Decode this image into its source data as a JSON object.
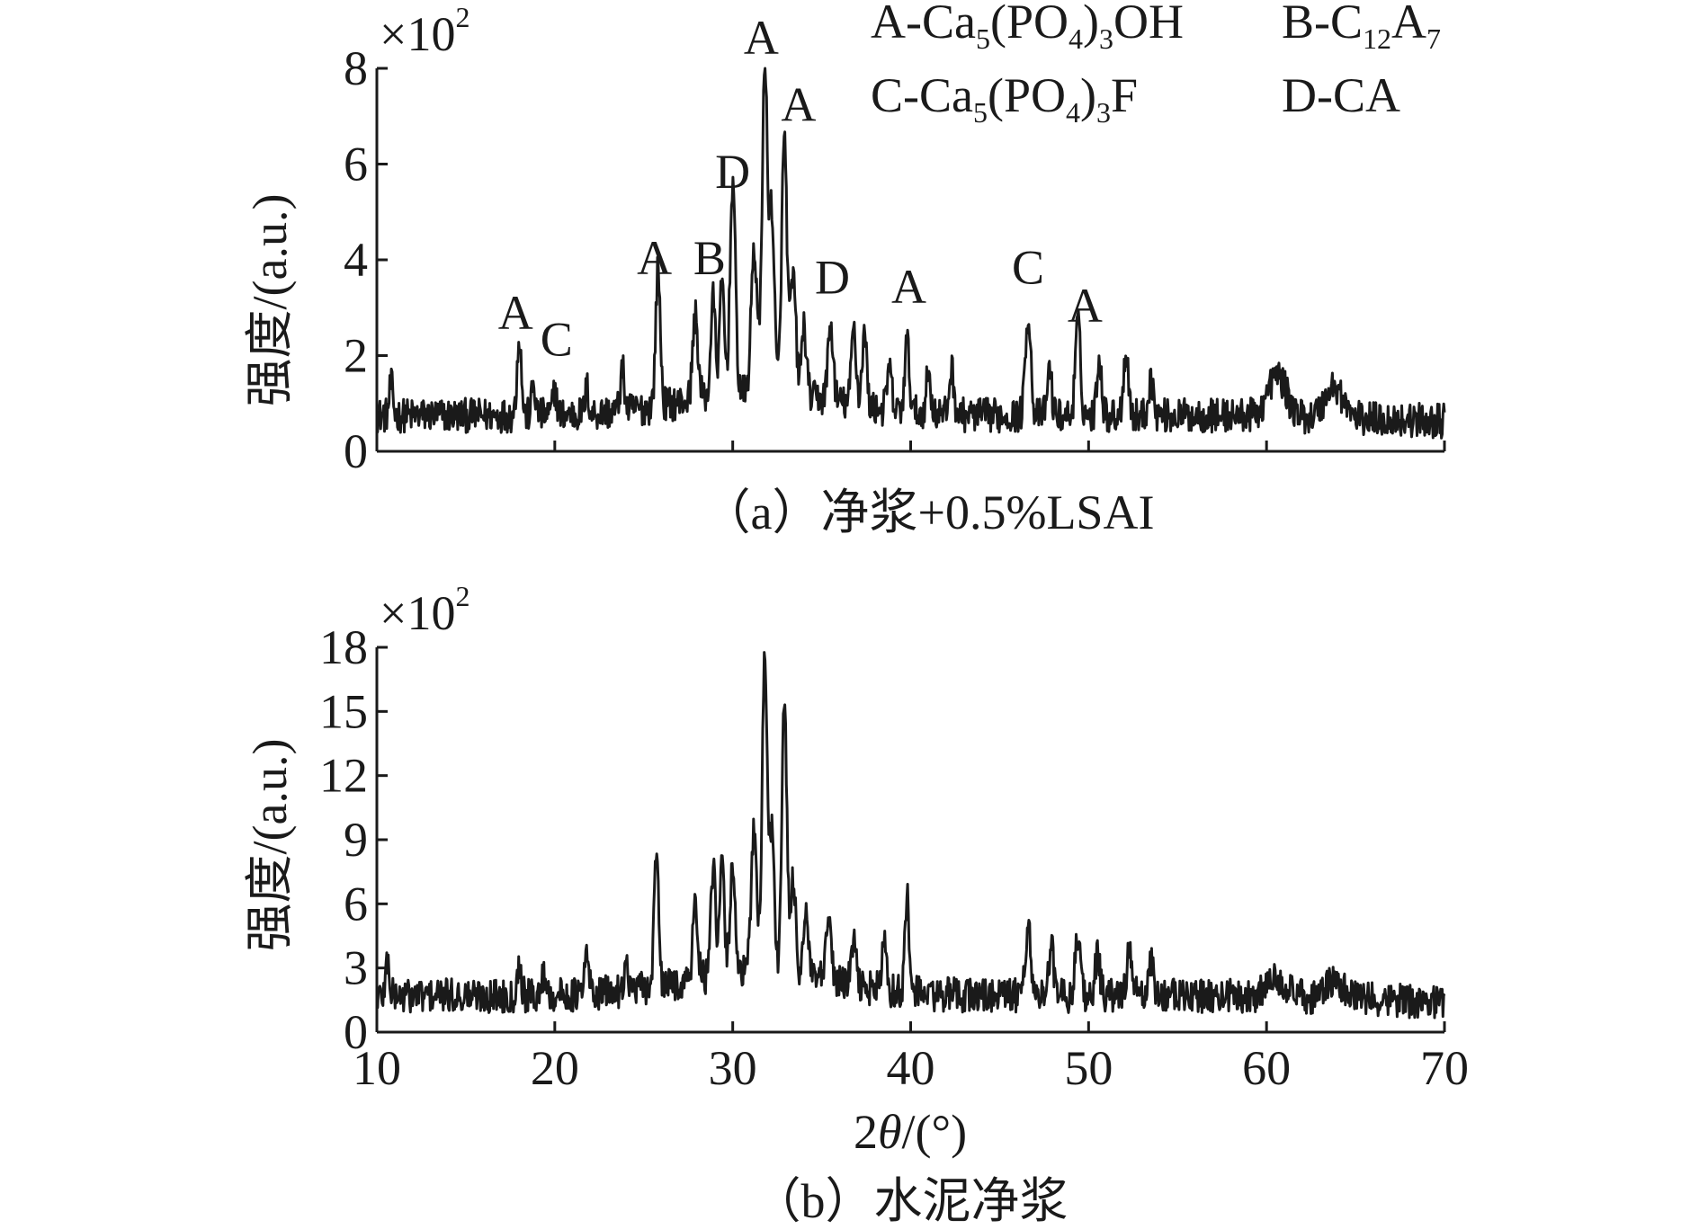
{
  "chart_data": [
    {
      "type": "line",
      "panel": "a",
      "caption": "（a）净浆+0.5%LSAI",
      "ylabel": "强度/(a.u.)",
      "y_multiplier": "×10²",
      "xlim": [
        10,
        70
      ],
      "ylim": [
        0,
        8
      ],
      "yticks": [
        0,
        2,
        4,
        6,
        8
      ],
      "xticks": [
        10,
        20,
        30,
        40,
        50,
        60,
        70
      ],
      "xtick_labels_shown": false,
      "legend": {
        "placement": "top-right",
        "entries": [
          {
            "prefix": "A-Ca",
            "text": "A-Ca5(PO4)3OH"
          },
          {
            "prefix": "B-C",
            "text": "B-C12A7"
          },
          {
            "prefix": "C-Ca",
            "text": "C-Ca5(PO4)3F"
          },
          {
            "prefix": "D-CA",
            "text": "D-CA"
          }
        ]
      },
      "baseline": 0.75,
      "series": [
        {
          "peaks": [
            {
              "x": 10.8,
              "y": 1.4,
              "w": 0.1
            },
            {
              "x": 18.0,
              "y": 2.4,
              "w": 0.12
            },
            {
              "x": 18.8,
              "y": 1.4,
              "w": 0.1
            },
            {
              "x": 20.0,
              "y": 1.3,
              "w": 0.1
            },
            {
              "x": 21.8,
              "y": 1.3,
              "w": 0.1
            },
            {
              "x": 23.8,
              "y": 1.6,
              "w": 0.12
            },
            {
              "x": 25.8,
              "y": 3.6,
              "w": 0.13
            },
            {
              "x": 27.9,
              "y": 2.5,
              "w": 0.15
            },
            {
              "x": 28.9,
              "y": 2.8,
              "w": 0.13
            },
            {
              "x": 29.4,
              "y": 3.1,
              "w": 0.13
            },
            {
              "x": 30.0,
              "y": 5.2,
              "w": 0.15
            },
            {
              "x": 31.2,
              "y": 3.8,
              "w": 0.16
            },
            {
              "x": 31.8,
              "y": 7.6,
              "w": 0.15
            },
            {
              "x": 32.2,
              "y": 4.5,
              "w": 0.14
            },
            {
              "x": 32.9,
              "y": 6.1,
              "w": 0.15
            },
            {
              "x": 33.4,
              "y": 3.2,
              "w": 0.15
            },
            {
              "x": 34.0,
              "y": 2.2,
              "w": 0.14
            },
            {
              "x": 35.5,
              "y": 2.3,
              "w": 0.15
            },
            {
              "x": 36.8,
              "y": 2.4,
              "w": 0.13
            },
            {
              "x": 37.4,
              "y": 2.3,
              "w": 0.13
            },
            {
              "x": 38.8,
              "y": 1.6,
              "w": 0.13
            },
            {
              "x": 39.8,
              "y": 2.2,
              "w": 0.13
            },
            {
              "x": 41.0,
              "y": 1.6,
              "w": 0.13
            },
            {
              "x": 42.3,
              "y": 1.7,
              "w": 0.13
            },
            {
              "x": 46.6,
              "y": 2.9,
              "w": 0.15
            },
            {
              "x": 47.8,
              "y": 1.7,
              "w": 0.13
            },
            {
              "x": 49.4,
              "y": 2.7,
              "w": 0.14
            },
            {
              "x": 50.6,
              "y": 2.0,
              "w": 0.13
            },
            {
              "x": 52.1,
              "y": 2.1,
              "w": 0.14
            },
            {
              "x": 53.5,
              "y": 1.5,
              "w": 0.14
            },
            {
              "x": 60.6,
              "y": 1.6,
              "w": 0.5
            },
            {
              "x": 63.8,
              "y": 1.4,
              "w": 0.5
            }
          ]
        }
      ],
      "annotations": [
        {
          "label": "A",
          "x": 17.8,
          "y": 2.55
        },
        {
          "label": "C",
          "x": 20.1,
          "y": 2.0
        },
        {
          "label": "A",
          "x": 25.6,
          "y": 3.7
        },
        {
          "label": "B",
          "x": 28.7,
          "y": 3.7
        },
        {
          "label": "D",
          "x": 30.0,
          "y": 5.5
        },
        {
          "label": "A",
          "x": 31.6,
          "y": 8.3
        },
        {
          "label": "A",
          "x": 33.7,
          "y": 6.9
        },
        {
          "label": "D",
          "x": 35.6,
          "y": 3.3
        },
        {
          "label": "A",
          "x": 39.9,
          "y": 3.1
        },
        {
          "label": "C",
          "x": 46.6,
          "y": 3.5
        },
        {
          "label": "A",
          "x": 49.8,
          "y": 2.7
        }
      ]
    },
    {
      "type": "line",
      "panel": "b",
      "caption": "（b）水泥净浆",
      "ylabel": "强度/(a.u.)",
      "xlabel": "2θ/(°)",
      "y_multiplier": "×10²",
      "xlim": [
        10,
        70
      ],
      "ylim": [
        0,
        18
      ],
      "yticks": [
        0,
        3,
        6,
        9,
        12,
        15,
        18
      ],
      "xticks": [
        10,
        20,
        30,
        40,
        50,
        60,
        70
      ],
      "baseline": 1.7,
      "series": [
        {
          "peaks": [
            {
              "x": 10.6,
              "y": 3.4,
              "w": 0.1
            },
            {
              "x": 18.0,
              "y": 3.1,
              "w": 0.12
            },
            {
              "x": 19.4,
              "y": 2.7,
              "w": 0.12
            },
            {
              "x": 21.8,
              "y": 3.5,
              "w": 0.12
            },
            {
              "x": 24.0,
              "y": 2.8,
              "w": 0.15
            },
            {
              "x": 25.7,
              "y": 8.2,
              "w": 0.12
            },
            {
              "x": 27.9,
              "y": 5.2,
              "w": 0.14
            },
            {
              "x": 28.9,
              "y": 6.8,
              "w": 0.13
            },
            {
              "x": 29.4,
              "y": 6.9,
              "w": 0.13
            },
            {
              "x": 30.0,
              "y": 7.0,
              "w": 0.14
            },
            {
              "x": 31.2,
              "y": 8.5,
              "w": 0.16
            },
            {
              "x": 31.8,
              "y": 16.5,
              "w": 0.14
            },
            {
              "x": 32.2,
              "y": 8.2,
              "w": 0.14
            },
            {
              "x": 32.9,
              "y": 14.4,
              "w": 0.14
            },
            {
              "x": 33.4,
              "y": 6.2,
              "w": 0.14
            },
            {
              "x": 34.1,
              "y": 4.6,
              "w": 0.14
            },
            {
              "x": 35.4,
              "y": 4.6,
              "w": 0.14
            },
            {
              "x": 36.8,
              "y": 3.8,
              "w": 0.13
            },
            {
              "x": 38.5,
              "y": 3.8,
              "w": 0.13
            },
            {
              "x": 39.8,
              "y": 6.1,
              "w": 0.12
            },
            {
              "x": 46.6,
              "y": 5.1,
              "w": 0.15
            },
            {
              "x": 47.9,
              "y": 4.0,
              "w": 0.14
            },
            {
              "x": 49.4,
              "y": 4.5,
              "w": 0.15
            },
            {
              "x": 50.5,
              "y": 3.5,
              "w": 0.14
            },
            {
              "x": 52.3,
              "y": 3.8,
              "w": 0.15
            },
            {
              "x": 53.5,
              "y": 3.3,
              "w": 0.14
            },
            {
              "x": 60.6,
              "y": 2.6,
              "w": 0.5
            },
            {
              "x": 63.8,
              "y": 2.4,
              "w": 0.5
            }
          ]
        }
      ]
    }
  ]
}
